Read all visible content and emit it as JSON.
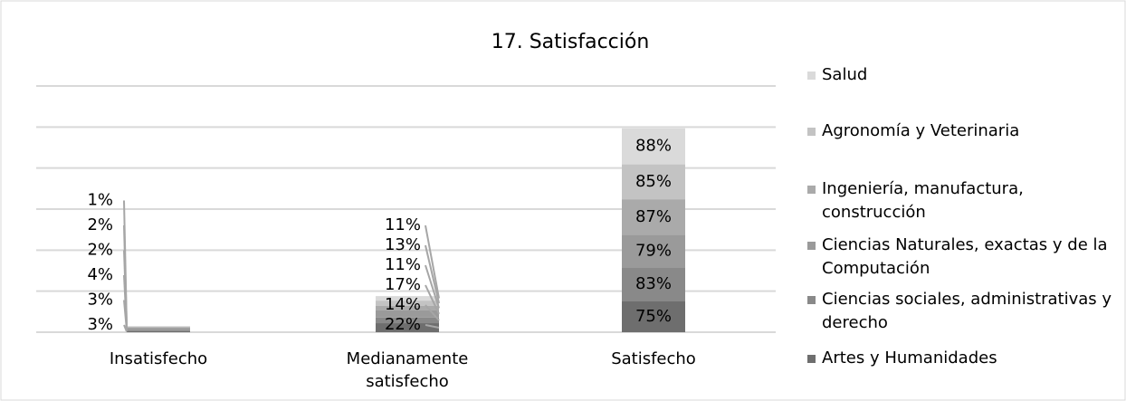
{
  "chart_data": {
    "type": "stacked_bar",
    "title": "17. Satisfacción",
    "categories": [
      "Insatisfecho",
      "Medianamente satisfecho",
      "Satisfecho"
    ],
    "series": [
      {
        "name": "Artes y Humanidades",
        "color": "#6e6e6e",
        "values": [
          3,
          22,
          75
        ],
        "value_labels": [
          "3%",
          "22%",
          "75%"
        ]
      },
      {
        "name": "Ciencias sociales, administrativas y derecho",
        "color": "#898989",
        "values": [
          3,
          14,
          83
        ],
        "value_labels": [
          "3%",
          "14%",
          "83%"
        ]
      },
      {
        "name": "Ciencias Naturales, exactas y de la Computación",
        "color": "#9a9a9a",
        "values": [
          4,
          17,
          79
        ],
        "value_labels": [
          "4%",
          "17%",
          "79%"
        ]
      },
      {
        "name": "Ingeniería, manufactura, construcción",
        "color": "#aaaaaa",
        "values": [
          2,
          11,
          87
        ],
        "value_labels": [
          "2%",
          "11%",
          "87%"
        ]
      },
      {
        "name": "Agronomía y Veterinaria",
        "color": "#c3c3c3",
        "values": [
          2,
          13,
          85
        ],
        "value_labels": [
          "2%",
          "13%",
          "85%"
        ]
      },
      {
        "name": "Salud",
        "color": "#dadada",
        "values": [
          1,
          11,
          88
        ],
        "value_labels": [
          "1%",
          "11%",
          "88%"
        ]
      }
    ],
    "ylim": [
      0,
      600
    ],
    "yticks": [
      0,
      100,
      200,
      300,
      400,
      500,
      600
    ],
    "grid": true,
    "legend": "right"
  }
}
